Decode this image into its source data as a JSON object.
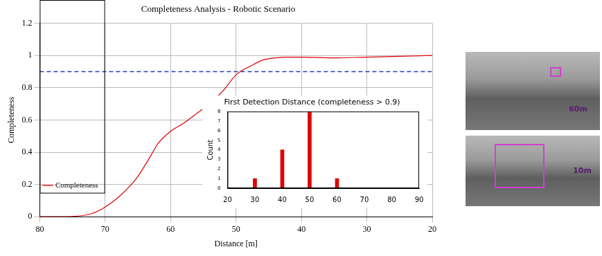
{
  "chart_data": [
    {
      "type": "line",
      "title": "Completeness Analysis - Robotic Scenario",
      "x_label": "Distance [m]",
      "y_label": "Completeness",
      "x": [
        80,
        75,
        72,
        70,
        68,
        66,
        65,
        63,
        62,
        60,
        58,
        56,
        55,
        53,
        52,
        50,
        49,
        48,
        46,
        44,
        42,
        40,
        35,
        30,
        25,
        20
      ],
      "series": [
        {
          "name": "Completeness",
          "color": "#e00000",
          "line_style": "solid",
          "values": [
            0,
            0.002,
            0.02,
            0.06,
            0.12,
            0.2,
            0.25,
            0.38,
            0.45,
            0.53,
            0.58,
            0.64,
            0.67,
            0.74,
            0.78,
            0.88,
            0.91,
            0.93,
            0.97,
            0.985,
            0.99,
            0.99,
            0.985,
            0.99,
            0.995,
            1.0
          ]
        }
      ],
      "reference_lines": [
        {
          "value": 0.9,
          "color": "#1f3fbf",
          "line_style": "dashed"
        }
      ],
      "xlim": [
        80,
        20
      ],
      "xticks": [
        80,
        70,
        60,
        50,
        40,
        30,
        20
      ],
      "ylim": [
        0,
        1.2
      ],
      "yticks": [
        0,
        0.2,
        0.4,
        0.6,
        0.8,
        1,
        1.2
      ],
      "grid": true,
      "legend": "upper right"
    },
    {
      "type": "bar",
      "title": "First Detection Distance (completeness > 0.9)",
      "y_label": "Count",
      "x": [
        30,
        40,
        50,
        60
      ],
      "values": [
        1,
        4,
        8,
        1
      ],
      "color": "#e00000",
      "xlim": [
        20,
        90
      ],
      "xticks": [
        20,
        30,
        40,
        50,
        60,
        70,
        80,
        90
      ],
      "ylim": [
        0,
        8
      ],
      "yticks": [
        0,
        1,
        2,
        3,
        4,
        5,
        6,
        7,
        8
      ],
      "grid": false
    }
  ],
  "images": [
    {
      "label": "60m"
    },
    {
      "label": "10m"
    }
  ]
}
